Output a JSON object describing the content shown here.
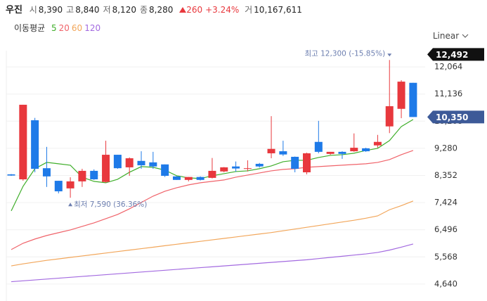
{
  "header": {
    "name": "우진",
    "fields": [
      {
        "label": "시",
        "value": "8,390"
      },
      {
        "label": "고",
        "value": "8,840"
      },
      {
        "label": "저",
        "value": "8,120"
      },
      {
        "label": "종",
        "value": "8,280"
      }
    ],
    "change": "260",
    "change_pct": "+3.24%",
    "volume_label": "거",
    "volume": "10,167,611"
  },
  "scale_mode": "Linear",
  "chart_data": {
    "type": "candlestick",
    "legend_title": "이동평균",
    "up_color": "#e8383d",
    "down_color": "#1e7ae8",
    "ylim": [
      4060,
      12620
    ],
    "yticks": [
      {
        "value": 4640,
        "label": "4,640"
      },
      {
        "value": 5568,
        "label": "5,568"
      },
      {
        "value": 6496,
        "label": "6,496"
      },
      {
        "value": 7424,
        "label": "7,424"
      },
      {
        "value": 8352,
        "label": "8,352"
      },
      {
        "value": 9280,
        "label": "9,280"
      },
      {
        "value": 10208,
        "label": "10,208"
      },
      {
        "value": 11136,
        "label": "11,136"
      },
      {
        "value": 12064,
        "label": "12,064"
      }
    ],
    "grid": true,
    "candles": {
      "open": [
        8390,
        8220,
        10240,
        8600,
        8170,
        7910,
        8150,
        8510,
        8130,
        9060,
        8630,
        8850,
        8800,
        8730,
        8320,
        8200,
        8300,
        8270,
        8490,
        8660,
        8580,
        8750,
        9110,
        9180,
        8990,
        8460,
        9500,
        9090,
        9160,
        9180,
        9280,
        9380,
        10030,
        10630,
        11520
      ],
      "high": [
        8400,
        10770,
        10320,
        9330,
        8170,
        8290,
        8580,
        8560,
        9540,
        9060,
        8970,
        9180,
        9160,
        8730,
        8330,
        8300,
        8320,
        8950,
        8640,
        8830,
        8870,
        8780,
        10380,
        9540,
        9000,
        9130,
        10220,
        9160,
        9180,
        9790,
        9300,
        9740,
        12300,
        11610,
        11520
      ],
      "low": [
        8340,
        8170,
        8460,
        7960,
        7740,
        7590,
        7960,
        8200,
        8100,
        8580,
        8340,
        8580,
        8580,
        8300,
        8200,
        8150,
        8180,
        8250,
        8460,
        8480,
        8490,
        8620,
        8940,
        9020,
        8460,
        8390,
        9110,
        9060,
        8920,
        9160,
        9160,
        9300,
        9800,
        10310,
        10350
      ],
      "close": [
        8350,
        10770,
        8580,
        8320,
        7810,
        8150,
        8510,
        8220,
        9060,
        8600,
        8940,
        8700,
        8660,
        8340,
        8200,
        8300,
        8200,
        8510,
        8630,
        8590,
        8600,
        8660,
        9260,
        9070,
        8580,
        9110,
        9160,
        9160,
        9090,
        9300,
        9180,
        9500,
        10720,
        11560,
        10350
      ]
    },
    "series": [
      {
        "name": "5",
        "color": "#3fae2a",
        "values": [
          7140,
          7982,
          8583,
          8799,
          8751,
          8703,
          8294,
          8150,
          8102,
          8222,
          8462,
          8655,
          8631,
          8535,
          8342,
          8270,
          8246,
          8342,
          8414,
          8486,
          8510,
          8583,
          8679,
          8823,
          8871,
          8871,
          8967,
          9039,
          9063,
          9112,
          9208,
          9280,
          9544,
          10025,
          10266
        ]
      },
      {
        "name": "20",
        "color": "#f0636a",
        "values": [
          5818,
          6034,
          6179,
          6299,
          6395,
          6491,
          6611,
          6731,
          6876,
          7020,
          7212,
          7429,
          7645,
          7813,
          7933,
          8030,
          8102,
          8150,
          8198,
          8294,
          8366,
          8438,
          8510,
          8559,
          8583,
          8631,
          8655,
          8679,
          8703,
          8727,
          8751,
          8799,
          8895,
          9063,
          9208
        ]
      },
      {
        "name": "60",
        "color": "#f2a65a",
        "values": [
          5260,
          5330,
          5390,
          5450,
          5500,
          5550,
          5600,
          5650,
          5700,
          5750,
          5800,
          5850,
          5900,
          5950,
          6000,
          6050,
          6100,
          6150,
          6200,
          6250,
          6300,
          6350,
          6400,
          6460,
          6520,
          6580,
          6640,
          6700,
          6760,
          6820,
          6890,
          6970,
          7180,
          7320,
          7480
        ]
      },
      {
        "name": "120",
        "color": "#a36ae0",
        "values": [
          4720,
          4750,
          4780,
          4810,
          4840,
          4870,
          4900,
          4930,
          4960,
          4990,
          5020,
          5050,
          5080,
          5110,
          5140,
          5170,
          5200,
          5230,
          5260,
          5290,
          5320,
          5350,
          5380,
          5410,
          5440,
          5470,
          5510,
          5550,
          5590,
          5630,
          5670,
          5720,
          5800,
          5900,
          6010
        ]
      }
    ],
    "annotations": [
      {
        "text": "최고 12,300 (-15.85%)",
        "index": 32,
        "value": 12300
      },
      {
        "text": "최저 7,590 (36.36%)",
        "index": 5,
        "value": 7590
      }
    ],
    "price_tags": [
      {
        "value": 12492,
        "label": "12,492",
        "color": "#111111"
      },
      {
        "value": 10350,
        "label": "10,350",
        "color": "#3d5a98"
      }
    ]
  }
}
